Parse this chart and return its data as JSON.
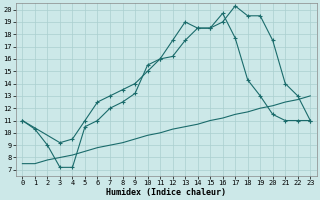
{
  "title": "",
  "xlabel": "Humidex (Indice chaleur)",
  "bg_color": "#cce8e8",
  "line_color": "#1a6b6b",
  "grid_color": "#aacfcf",
  "xlim": [
    -0.5,
    23.5
  ],
  "ylim": [
    6.5,
    20.5
  ],
  "yticks": [
    7,
    8,
    9,
    10,
    11,
    12,
    13,
    14,
    15,
    16,
    17,
    18,
    19,
    20
  ],
  "xticks": [
    0,
    1,
    2,
    3,
    4,
    5,
    6,
    7,
    8,
    9,
    10,
    11,
    12,
    13,
    14,
    15,
    16,
    17,
    18,
    19,
    20,
    21,
    22,
    23
  ],
  "line1_x": [
    0,
    1,
    2,
    3,
    4,
    5,
    6,
    7,
    8,
    9,
    10,
    11,
    12,
    13,
    14,
    15,
    16,
    17,
    18,
    19,
    20,
    21,
    22,
    23
  ],
  "line1_y": [
    11,
    10.3,
    9.0,
    7.2,
    7.2,
    10.5,
    11.0,
    12.0,
    12.5,
    13.2,
    15.5,
    16.0,
    16.2,
    17.5,
    18.5,
    18.5,
    19.0,
    20.3,
    19.5,
    19.5,
    17.5,
    14.0,
    13.0,
    11.0
  ],
  "line2_x": [
    0,
    3,
    4,
    5,
    6,
    7,
    8,
    9,
    10,
    11,
    12,
    13,
    14,
    15,
    16,
    17,
    18,
    19,
    20,
    21,
    22,
    23
  ],
  "line2_y": [
    11,
    9.2,
    9.5,
    11.0,
    12.5,
    13.0,
    13.5,
    14.0,
    15.0,
    16.0,
    17.5,
    19.0,
    18.5,
    18.5,
    19.7,
    17.7,
    14.3,
    13.0,
    11.5,
    11.0,
    11.0,
    11.0
  ],
  "line3_x": [
    0,
    1,
    2,
    3,
    4,
    5,
    6,
    7,
    8,
    9,
    10,
    11,
    12,
    13,
    14,
    15,
    16,
    17,
    18,
    19,
    20,
    21,
    22,
    23
  ],
  "line3_y": [
    7.5,
    7.5,
    7.8,
    8.0,
    8.2,
    8.5,
    8.8,
    9.0,
    9.2,
    9.5,
    9.8,
    10.0,
    10.3,
    10.5,
    10.7,
    11.0,
    11.2,
    11.5,
    11.7,
    12.0,
    12.2,
    12.5,
    12.7,
    13.0
  ],
  "markersize": 2.0,
  "linewidth": 0.8,
  "tick_fontsize": 5.0,
  "xlabel_fontsize": 6.0
}
